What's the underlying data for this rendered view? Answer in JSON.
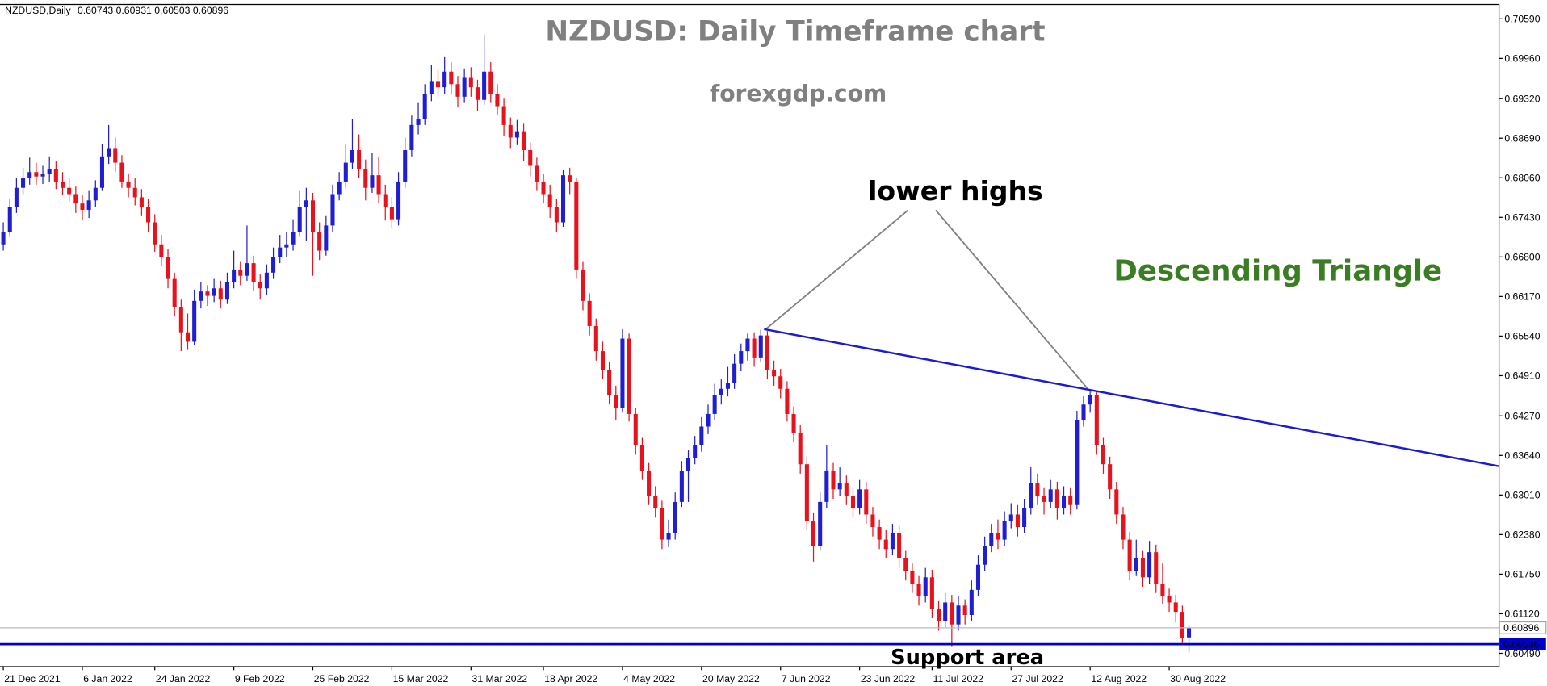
{
  "chart_data": {
    "type": "candlestick",
    "title": "NZDUSD: Daily Timeframe chart",
    "subtitle": "forexgdp.com",
    "header": {
      "symbol": "NZDUSD,Daily",
      "open": 0.60743,
      "high": 0.60931,
      "low": 0.60503,
      "close": 0.60896
    },
    "colors": {
      "up": "#1f1fd1",
      "down": "#e8111c"
    },
    "ohlc": [
      [
        0.67,
        0.6735,
        0.669,
        0.672
      ],
      [
        0.672,
        0.6772,
        0.6712,
        0.676
      ],
      [
        0.676,
        0.6805,
        0.675,
        0.679
      ],
      [
        0.679,
        0.6822,
        0.678,
        0.6805
      ],
      [
        0.6805,
        0.6838,
        0.6795,
        0.6815
      ],
      [
        0.6815,
        0.683,
        0.6795,
        0.6808
      ],
      [
        0.6808,
        0.6825,
        0.6796,
        0.6812
      ],
      [
        0.6812,
        0.684,
        0.68,
        0.682
      ],
      [
        0.682,
        0.6832,
        0.6788,
        0.68
      ],
      [
        0.68,
        0.6815,
        0.6778,
        0.679
      ],
      [
        0.679,
        0.6805,
        0.6768,
        0.678
      ],
      [
        0.678,
        0.6792,
        0.675,
        0.6765
      ],
      [
        0.6765,
        0.6778,
        0.6738,
        0.6755
      ],
      [
        0.6755,
        0.6785,
        0.6742,
        0.677
      ],
      [
        0.677,
        0.6802,
        0.676,
        0.679
      ],
      [
        0.679,
        0.686,
        0.6785,
        0.684
      ],
      [
        0.684,
        0.689,
        0.6828,
        0.6852
      ],
      [
        0.6852,
        0.687,
        0.6815,
        0.683
      ],
      [
        0.683,
        0.6842,
        0.679,
        0.68
      ],
      [
        0.68,
        0.6812,
        0.6775,
        0.679
      ],
      [
        0.679,
        0.6805,
        0.6762,
        0.6775
      ],
      [
        0.6775,
        0.6788,
        0.6745,
        0.676
      ],
      [
        0.676,
        0.6772,
        0.672,
        0.6735
      ],
      [
        0.6735,
        0.6748,
        0.6688,
        0.67
      ],
      [
        0.67,
        0.6715,
        0.6665,
        0.668
      ],
      [
        0.668,
        0.6692,
        0.663,
        0.6645
      ],
      [
        0.6645,
        0.6655,
        0.6585,
        0.66
      ],
      [
        0.66,
        0.6612,
        0.653,
        0.656
      ],
      [
        0.656,
        0.659,
        0.6532,
        0.6545
      ],
      [
        0.6545,
        0.6628,
        0.654,
        0.661
      ],
      [
        0.661,
        0.664,
        0.6598,
        0.6625
      ],
      [
        0.6625,
        0.6635,
        0.6602,
        0.6618
      ],
      [
        0.6618,
        0.6645,
        0.6608,
        0.663
      ],
      [
        0.663,
        0.6642,
        0.6598,
        0.6612
      ],
      [
        0.6612,
        0.6655,
        0.6605,
        0.664
      ],
      [
        0.664,
        0.669,
        0.663,
        0.666
      ],
      [
        0.666,
        0.6672,
        0.6635,
        0.665
      ],
      [
        0.665,
        0.673,
        0.6642,
        0.667
      ],
      [
        0.667,
        0.6682,
        0.6625,
        0.664
      ],
      [
        0.664,
        0.6652,
        0.6612,
        0.663
      ],
      [
        0.663,
        0.6668,
        0.662,
        0.6655
      ],
      [
        0.6655,
        0.6695,
        0.6645,
        0.668
      ],
      [
        0.668,
        0.6715,
        0.667,
        0.6695
      ],
      [
        0.6695,
        0.672,
        0.668,
        0.67
      ],
      [
        0.67,
        0.674,
        0.669,
        0.672
      ],
      [
        0.672,
        0.6785,
        0.6712,
        0.676
      ],
      [
        0.676,
        0.679,
        0.6705,
        0.677
      ],
      [
        0.677,
        0.6782,
        0.665,
        0.672
      ],
      [
        0.672,
        0.6735,
        0.6675,
        0.669
      ],
      [
        0.669,
        0.6745,
        0.6682,
        0.673
      ],
      [
        0.673,
        0.6795,
        0.672,
        0.678
      ],
      [
        0.678,
        0.6815,
        0.677,
        0.68
      ],
      [
        0.68,
        0.686,
        0.679,
        0.683
      ],
      [
        0.683,
        0.69,
        0.682,
        0.685
      ],
      [
        0.685,
        0.6875,
        0.6805,
        0.682
      ],
      [
        0.682,
        0.6835,
        0.677,
        0.679
      ],
      [
        0.679,
        0.6845,
        0.6782,
        0.681
      ],
      [
        0.681,
        0.684,
        0.6765,
        0.678
      ],
      [
        0.678,
        0.6795,
        0.6738,
        0.676
      ],
      [
        0.676,
        0.6775,
        0.6725,
        0.674
      ],
      [
        0.674,
        0.6815,
        0.673,
        0.68
      ],
      [
        0.68,
        0.687,
        0.679,
        0.685
      ],
      [
        0.685,
        0.6905,
        0.684,
        0.689
      ],
      [
        0.689,
        0.6925,
        0.6875,
        0.69
      ],
      [
        0.69,
        0.6955,
        0.689,
        0.694
      ],
      [
        0.694,
        0.6985,
        0.6928,
        0.696
      ],
      [
        0.696,
        0.6978,
        0.6935,
        0.695
      ],
      [
        0.695,
        0.6998,
        0.694,
        0.6975
      ],
      [
        0.6975,
        0.699,
        0.694,
        0.6955
      ],
      [
        0.6955,
        0.6968,
        0.6918,
        0.6935
      ],
      [
        0.6935,
        0.698,
        0.6925,
        0.6965
      ],
      [
        0.6965,
        0.6982,
        0.6935,
        0.695
      ],
      [
        0.695,
        0.6962,
        0.6912,
        0.693
      ],
      [
        0.693,
        0.7034,
        0.6922,
        0.6975
      ],
      [
        0.6975,
        0.699,
        0.6925,
        0.694
      ],
      [
        0.694,
        0.6955,
        0.6905,
        0.692
      ],
      [
        0.692,
        0.6932,
        0.6872,
        0.689
      ],
      [
        0.689,
        0.6902,
        0.6852,
        0.687
      ],
      [
        0.687,
        0.6898,
        0.6858,
        0.688
      ],
      [
        0.688,
        0.6892,
        0.6832,
        0.685
      ],
      [
        0.685,
        0.6862,
        0.6808,
        0.6825
      ],
      [
        0.6825,
        0.6838,
        0.6785,
        0.68
      ],
      [
        0.68,
        0.6812,
        0.6765,
        0.678
      ],
      [
        0.678,
        0.6795,
        0.6742,
        0.676
      ],
      [
        0.676,
        0.6772,
        0.672,
        0.6735
      ],
      [
        0.6735,
        0.6818,
        0.6728,
        0.681
      ],
      [
        0.681,
        0.6822,
        0.678,
        0.68
      ],
      [
        0.68,
        0.6805,
        0.6645,
        0.666
      ],
      [
        0.666,
        0.6672,
        0.6595,
        0.661
      ],
      [
        0.661,
        0.6622,
        0.6555,
        0.657
      ],
      [
        0.657,
        0.6582,
        0.6515,
        0.653
      ],
      [
        0.653,
        0.6545,
        0.6485,
        0.65
      ],
      [
        0.65,
        0.6512,
        0.6445,
        0.646
      ],
      [
        0.646,
        0.6475,
        0.642,
        0.644
      ],
      [
        0.644,
        0.6565,
        0.6432,
        0.655
      ],
      [
        0.655,
        0.6558,
        0.6418,
        0.643
      ],
      [
        0.643,
        0.644,
        0.6365,
        0.638
      ],
      [
        0.638,
        0.6392,
        0.6325,
        0.634
      ],
      [
        0.634,
        0.6352,
        0.6285,
        0.63
      ],
      [
        0.63,
        0.6315,
        0.6265,
        0.628
      ],
      [
        0.628,
        0.6292,
        0.6215,
        0.623
      ],
      [
        0.623,
        0.6262,
        0.6218,
        0.624
      ],
      [
        0.624,
        0.6305,
        0.623,
        0.629
      ],
      [
        0.629,
        0.6355,
        0.6282,
        0.634
      ],
      [
        0.634,
        0.6372,
        0.629,
        0.636
      ],
      [
        0.636,
        0.6395,
        0.635,
        0.638
      ],
      [
        0.638,
        0.6425,
        0.637,
        0.641
      ],
      [
        0.641,
        0.6445,
        0.6398,
        0.643
      ],
      [
        0.643,
        0.6478,
        0.642,
        0.646
      ],
      [
        0.646,
        0.6485,
        0.6445,
        0.647
      ],
      [
        0.647,
        0.6505,
        0.6458,
        0.648
      ],
      [
        0.648,
        0.6525,
        0.647,
        0.651
      ],
      [
        0.651,
        0.6542,
        0.6498,
        0.653
      ],
      [
        0.653,
        0.6558,
        0.6515,
        0.655
      ],
      [
        0.655,
        0.656,
        0.6505,
        0.652
      ],
      [
        0.652,
        0.6564,
        0.6512,
        0.6555
      ],
      [
        0.6555,
        0.6562,
        0.6485,
        0.65
      ],
      [
        0.65,
        0.6515,
        0.6475,
        0.649
      ],
      [
        0.649,
        0.6502,
        0.6455,
        0.647
      ],
      [
        0.647,
        0.6482,
        0.6418,
        0.643
      ],
      [
        0.643,
        0.6442,
        0.6385,
        0.64
      ],
      [
        0.64,
        0.6412,
        0.6335,
        0.635
      ],
      [
        0.635,
        0.6362,
        0.6245,
        0.626
      ],
      [
        0.626,
        0.6272,
        0.6195,
        0.622
      ],
      [
        0.622,
        0.6305,
        0.6212,
        0.629
      ],
      [
        0.629,
        0.638,
        0.628,
        0.634
      ],
      [
        0.634,
        0.6352,
        0.6295,
        0.631
      ],
      [
        0.631,
        0.6345,
        0.63,
        0.632
      ],
      [
        0.632,
        0.6332,
        0.6285,
        0.63
      ],
      [
        0.63,
        0.6312,
        0.6265,
        0.628
      ],
      [
        0.628,
        0.6325,
        0.627,
        0.631
      ],
      [
        0.631,
        0.6322,
        0.6255,
        0.627
      ],
      [
        0.627,
        0.6282,
        0.6235,
        0.625
      ],
      [
        0.625,
        0.6262,
        0.6215,
        0.623
      ],
      [
        0.623,
        0.6245,
        0.62,
        0.6215
      ],
      [
        0.6215,
        0.6255,
        0.6205,
        0.624
      ],
      [
        0.624,
        0.6252,
        0.6185,
        0.62
      ],
      [
        0.62,
        0.6212,
        0.6165,
        0.618
      ],
      [
        0.618,
        0.6192,
        0.6145,
        0.616
      ],
      [
        0.616,
        0.6172,
        0.6125,
        0.614
      ],
      [
        0.614,
        0.6185,
        0.613,
        0.617
      ],
      [
        0.617,
        0.6182,
        0.6105,
        0.612
      ],
      [
        0.612,
        0.6132,
        0.6085,
        0.61
      ],
      [
        0.61,
        0.6145,
        0.609,
        0.613
      ],
      [
        0.613,
        0.6142,
        0.6059,
        0.6095
      ],
      [
        0.6095,
        0.614,
        0.6085,
        0.6125
      ],
      [
        0.6125,
        0.6135,
        0.6095,
        0.611
      ],
      [
        0.611,
        0.6165,
        0.61,
        0.615
      ],
      [
        0.615,
        0.6205,
        0.614,
        0.619
      ],
      [
        0.619,
        0.6235,
        0.618,
        0.622
      ],
      [
        0.622,
        0.6255,
        0.621,
        0.624
      ],
      [
        0.624,
        0.6262,
        0.6215,
        0.623
      ],
      [
        0.623,
        0.6275,
        0.622,
        0.626
      ],
      [
        0.626,
        0.6288,
        0.6248,
        0.627
      ],
      [
        0.627,
        0.6285,
        0.6235,
        0.625
      ],
      [
        0.625,
        0.6295,
        0.624,
        0.628
      ],
      [
        0.628,
        0.6345,
        0.627,
        0.632
      ],
      [
        0.632,
        0.6335,
        0.6285,
        0.63
      ],
      [
        0.63,
        0.6312,
        0.627,
        0.629
      ],
      [
        0.629,
        0.6325,
        0.628,
        0.631
      ],
      [
        0.631,
        0.6322,
        0.6262,
        0.628
      ],
      [
        0.628,
        0.6315,
        0.627,
        0.63
      ],
      [
        0.63,
        0.6312,
        0.627,
        0.6285
      ],
      [
        0.6285,
        0.6435,
        0.6278,
        0.642
      ],
      [
        0.642,
        0.6458,
        0.641,
        0.6445
      ],
      [
        0.6445,
        0.6468,
        0.6432,
        0.646
      ],
      [
        0.646,
        0.6465,
        0.6365,
        0.638
      ],
      [
        0.638,
        0.6392,
        0.6335,
        0.635
      ],
      [
        0.635,
        0.6362,
        0.6295,
        0.631
      ],
      [
        0.631,
        0.6322,
        0.6255,
        0.627
      ],
      [
        0.627,
        0.6282,
        0.6215,
        0.623
      ],
      [
        0.623,
        0.6242,
        0.6165,
        0.618
      ],
      [
        0.618,
        0.623,
        0.6172,
        0.62
      ],
      [
        0.62,
        0.6212,
        0.6155,
        0.617
      ],
      [
        0.617,
        0.6228,
        0.616,
        0.621
      ],
      [
        0.621,
        0.6222,
        0.6145,
        0.616
      ],
      [
        0.616,
        0.6192,
        0.6128,
        0.614
      ],
      [
        0.614,
        0.6152,
        0.6115,
        0.613
      ],
      [
        0.613,
        0.6142,
        0.6098,
        0.6115
      ],
      [
        0.6115,
        0.6125,
        0.6062,
        0.6074
      ],
      [
        0.60743,
        0.60931,
        0.60503,
        0.60896
      ]
    ],
    "xlim": [
      -0.5,
      227
    ],
    "xticks": [
      {
        "value": 0,
        "label": "21 Dec 2021"
      },
      {
        "value": 12,
        "label": "6 Jan 2022"
      },
      {
        "value": 23,
        "label": "24 Jan 2022"
      },
      {
        "value": 35,
        "label": "9 Feb 2022"
      },
      {
        "value": 47,
        "label": "25 Feb 2022"
      },
      {
        "value": 59,
        "label": "15 Mar 2022"
      },
      {
        "value": 71,
        "label": "31 Mar 2022"
      },
      {
        "value": 82,
        "label": "18 Apr 2022"
      },
      {
        "value": 94,
        "label": "4 May 2022"
      },
      {
        "value": 106,
        "label": "20 May 2022"
      },
      {
        "value": 118,
        "label": "7 Jun 2022"
      },
      {
        "value": 130,
        "label": "23 Jun 2022"
      },
      {
        "value": 141,
        "label": "11 Jul 2022"
      },
      {
        "value": 153,
        "label": "27 Jul 2022"
      },
      {
        "value": 165,
        "label": "12 Aug 2022"
      },
      {
        "value": 177,
        "label": "30 Aug 2022"
      }
    ],
    "ylim": [
      0.60285,
      0.70811
    ],
    "yticks": [
      {
        "value": 0.7059,
        "label": "0.70590"
      },
      {
        "value": 0.6996,
        "label": "0.69960"
      },
      {
        "value": 0.6932,
        "label": "0.69320"
      },
      {
        "value": 0.6869,
        "label": "0.68690"
      },
      {
        "value": 0.6806,
        "label": "0.68060"
      },
      {
        "value": 0.6743,
        "label": "0.67430"
      },
      {
        "value": 0.668,
        "label": "0.66800"
      },
      {
        "value": 0.6617,
        "label": "0.66170"
      },
      {
        "value": 0.6554,
        "label": "0.65540"
      },
      {
        "value": 0.6491,
        "label": "0.64910"
      },
      {
        "value": 0.6427,
        "label": "0.64270"
      },
      {
        "value": 0.6364,
        "label": "0.63640"
      },
      {
        "value": 0.6301,
        "label": "0.63010"
      },
      {
        "value": 0.6238,
        "label": "0.62380"
      },
      {
        "value": 0.6175,
        "label": "0.61750"
      },
      {
        "value": 0.6112,
        "label": "0.61120"
      },
      {
        "value": 0.6049,
        "label": "0.60490"
      }
    ],
    "current_price": 0.60896,
    "support_price": 0.60636,
    "support_color": "#0000c8",
    "trendline": {
      "color": "#1a1ad6",
      "points": [
        [
          115.5,
          0.6565
        ],
        [
          227,
          0.6347
        ]
      ]
    },
    "annotations": {
      "lower_highs": "lower highs",
      "pattern": "Descending Triangle",
      "support": "Support area"
    }
  }
}
